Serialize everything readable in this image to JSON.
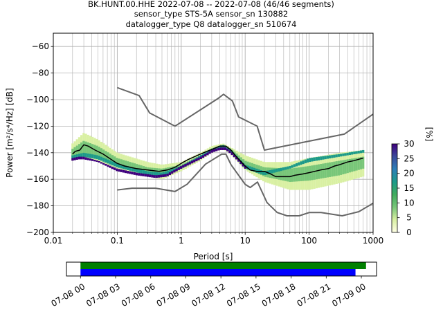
{
  "chart_data": [
    {
      "type": "heatmap",
      "title_lines": [
        "BK.HUNT.00.HHE   2022-07-08 -- 2022-07-08  (46/46 segments)",
        "sensor_type STS-5A sensor_sn 130882",
        "datalogger_type Q8 datalogger_sn 510674"
      ],
      "xlabel": "Period [s]",
      "ylabel": "Power [m²/s⁴/Hz] [dB]",
      "x_scale": "log",
      "xlim": [
        0.01,
        1000
      ],
      "ylim": [
        -200,
        -50
      ],
      "x_ticks": [
        {
          "value": 0.01,
          "label": "0.01"
        },
        {
          "value": 0.1,
          "label": "0.1"
        },
        {
          "value": 1,
          "label": "1"
        },
        {
          "value": 10,
          "label": "10"
        },
        {
          "value": 100,
          "label": "100"
        },
        {
          "value": 1000,
          "label": "1000"
        }
      ],
      "y_ticks": [
        {
          "value": -200,
          "label": "−200"
        },
        {
          "value": -180,
          "label": "−180"
        },
        {
          "value": -160,
          "label": "−160"
        },
        {
          "value": -140,
          "label": "−140"
        },
        {
          "value": -120,
          "label": "−120"
        },
        {
          "value": -100,
          "label": "−100"
        },
        {
          "value": -80,
          "label": "−80"
        },
        {
          "value": -60,
          "label": "−60"
        }
      ],
      "grid": true,
      "colorbar": {
        "label": "[%]",
        "range": [
          0,
          30
        ],
        "ticks": [
          {
            "value": 0,
            "label": "0"
          },
          {
            "value": 5,
            "label": "5"
          },
          {
            "value": 10,
            "label": "10"
          },
          {
            "value": 15,
            "label": "15"
          },
          {
            "value": 20,
            "label": "20"
          },
          {
            "value": 25,
            "label": "25"
          },
          {
            "value": 30,
            "label": "30"
          }
        ],
        "colors": [
          "#ffffe5",
          "#d9f0a3",
          "#78c679",
          "#41ab5d",
          "#1d9a8a",
          "#2c7fb8",
          "#3b4a9a",
          "#3f007d"
        ]
      },
      "series": [
        {
          "role": "new_high_noise_model",
          "color": "#666666",
          "x": [
            0.1,
            0.22,
            0.32,
            0.8,
            3.8,
            4.6,
            6.3,
            7.9,
            15.4,
            20,
            354.8,
            1000
          ],
          "y": [
            -91,
            -97,
            -110,
            -120,
            -99,
            -96,
            -101,
            -113,
            -120,
            -138,
            -126,
            -111
          ]
        },
        {
          "role": "new_low_noise_model",
          "color": "#666666",
          "x": [
            0.1,
            0.17,
            0.4,
            0.8,
            1.24,
            2.4,
            4.3,
            5,
            6,
            10,
            12,
            15.6,
            21.9,
            31.6,
            45,
            70,
            101,
            154,
            328,
            600,
            1000
          ],
          "y": [
            -168,
            -166.7,
            -166.7,
            -169.2,
            -163.7,
            -148.6,
            -141.1,
            -141.1,
            -149,
            -163.8,
            -166.2,
            -162.1,
            -177.5,
            -185,
            -187.5,
            -187.5,
            -185,
            -185,
            -187.5,
            -184.4,
            -178
          ]
        },
        {
          "role": "mode",
          "color": "#000000",
          "x": [
            0.02,
            0.022,
            0.026,
            0.03,
            0.035,
            0.045,
            0.06,
            0.08,
            0.1,
            0.13,
            0.2,
            0.3,
            0.45,
            0.6,
            0.8,
            1.0,
            1.3,
            1.8,
            2.5,
            3.2,
            4.0,
            5.0,
            6.0,
            7.0,
            8.0,
            10,
            12,
            15,
            20,
            25,
            30,
            40,
            50,
            60,
            80,
            100,
            150,
            200,
            250,
            300,
            400,
            500,
            700
          ],
          "y": [
            -141,
            -139,
            -138,
            -134,
            -135,
            -138,
            -141,
            -145,
            -148,
            -150,
            -152,
            -153,
            -154,
            -153,
            -151,
            -148,
            -145,
            -142,
            -139,
            -137,
            -135,
            -135,
            -138,
            -142,
            -145,
            -150,
            -153,
            -154,
            -154,
            -156,
            -158,
            -158,
            -158,
            -157,
            -156,
            -155,
            -153,
            -152,
            -150,
            -149,
            -147,
            -146,
            -144
          ]
        }
      ],
      "density_bands": [
        {
          "x": [
            0.02,
            0.03,
            0.05,
            0.1,
            0.3,
            0.5,
            1,
            2,
            3,
            4.5,
            6,
            10,
            20,
            50,
            100,
            300,
            700
          ],
          "y_low": [
            -146,
            -144,
            -146,
            -152,
            -158,
            -160,
            -154,
            -146,
            -140,
            -137,
            -141,
            -153,
            -162,
            -168,
            -168,
            -163,
            -158
          ],
          "y_high": [
            -133,
            -125,
            -130,
            -140,
            -147,
            -149,
            -147,
            -140,
            -135,
            -133,
            -136,
            -142,
            -147,
            -147,
            -144,
            -140,
            -138
          ],
          "level": 4
        },
        {
          "x": [
            0.02,
            0.03,
            0.05,
            0.1,
            0.3,
            0.5,
            1,
            2,
            3,
            4.5,
            6,
            10,
            20,
            50,
            100,
            300,
            700
          ],
          "y_low": [
            -143,
            -141,
            -143,
            -150,
            -155,
            -157,
            -151,
            -143,
            -138,
            -135,
            -139,
            -151,
            -158,
            -162,
            -161,
            -157,
            -152
          ],
          "y_high": [
            -137,
            -131,
            -135,
            -144,
            -151,
            -152,
            -149,
            -142,
            -137,
            -134,
            -137,
            -146,
            -151,
            -152,
            -150,
            -146,
            -143
          ],
          "level": 10
        },
        {
          "x": [
            0.02,
            0.03,
            0.05,
            0.1,
            0.3,
            0.5,
            1,
            2,
            3,
            4.5,
            6,
            10,
            20,
            50,
            100,
            300,
            700
          ],
          "y_low": [
            -144,
            -143,
            -145,
            -151,
            -157,
            -158,
            -152,
            -144,
            -139,
            -136,
            -140,
            -152,
            -157,
            -152,
            -147,
            -143,
            -140
          ],
          "y_high": [
            -142,
            -140,
            -142,
            -148,
            -154,
            -155,
            -150,
            -142,
            -137,
            -134,
            -138,
            -149,
            -154,
            -150,
            -144,
            -141,
            -138
          ],
          "level": 18
        },
        {
          "x": [
            0.02,
            0.025,
            0.03,
            0.05,
            0.1,
            0.2,
            0.4,
            0.6,
            1,
            2,
            3,
            4,
            5,
            6,
            8,
            10
          ],
          "y_low": [
            -146,
            -145,
            -145,
            -147,
            -154,
            -157,
            -159,
            -158,
            -152,
            -145,
            -140,
            -138,
            -138,
            -141,
            -147,
            -152
          ],
          "y_high": [
            -144,
            -143,
            -143,
            -146,
            -152,
            -155,
            -157,
            -156,
            -150,
            -143,
            -138,
            -136,
            -136,
            -139,
            -145,
            -150
          ],
          "level": 28
        }
      ]
    },
    {
      "type": "timeline",
      "x_ticks": [
        {
          "hour": 0,
          "label": "07-08 00"
        },
        {
          "hour": 3,
          "label": "07-08 03"
        },
        {
          "hour": 6,
          "label": "07-08 06"
        },
        {
          "hour": 9,
          "label": "07-08 09"
        },
        {
          "hour": 12,
          "label": "07-08 12"
        },
        {
          "hour": 15,
          "label": "07-08 15"
        },
        {
          "hour": 18,
          "label": "07-08 18"
        },
        {
          "hour": 21,
          "label": "07-08 21"
        },
        {
          "hour": 24,
          "label": "07-09 00"
        }
      ],
      "xlim_hours": [
        -1.2,
        25.3
      ],
      "bars": [
        {
          "role": "data_available",
          "color": "#008000",
          "start_hour": 0,
          "end_hour": 24.4
        },
        {
          "role": "psd_segments_used",
          "color": "#0000ff",
          "start_hour": 0,
          "end_hour": 23.5
        }
      ]
    }
  ]
}
